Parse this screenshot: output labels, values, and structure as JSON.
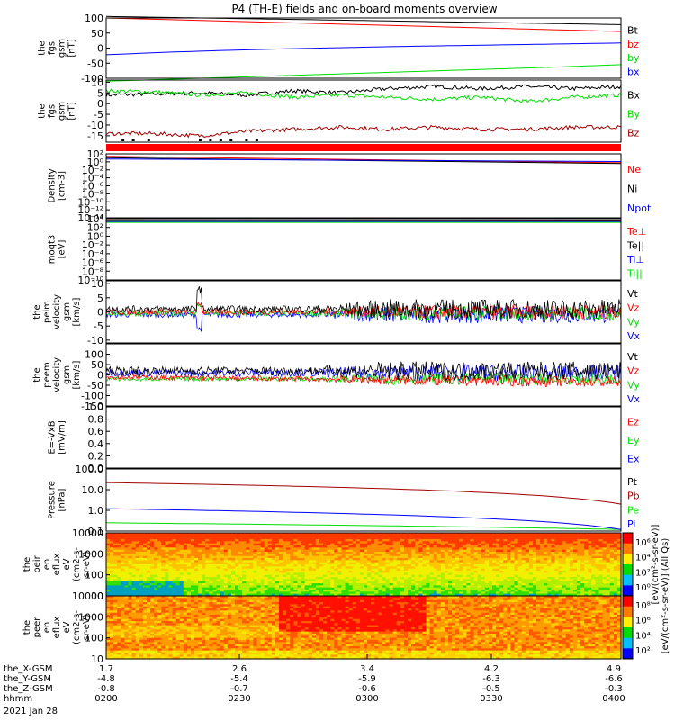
{
  "title": "P4 (TH-E) fields and on-board moments overview",
  "colors": {
    "black": "#000000",
    "red": "#ff0000",
    "green": "#00dd00",
    "blue": "#0000ff",
    "darkred": "#a00000",
    "darkgreen": "#00cc00"
  },
  "chart_data": [
    {
      "type": "line",
      "id": "p1",
      "ylabel": [
        "the",
        "fgs",
        "gsm",
        "[nT]"
      ],
      "yticks": [
        100,
        50,
        0,
        -50,
        -100
      ],
      "ylim": [
        -100,
        100
      ],
      "series": [
        {
          "name": "Bt",
          "color": "black",
          "values": [
            105,
            102,
            99,
            96,
            93,
            90,
            87,
            84,
            81,
            78
          ]
        },
        {
          "name": "bz",
          "color": "red",
          "values": [
            100,
            95,
            90,
            85,
            80,
            75,
            70,
            65,
            60,
            55
          ]
        },
        {
          "name": "by",
          "color": "green",
          "values": [
            -110,
            -104,
            -98,
            -92,
            -86,
            -80,
            -74,
            -68,
            -62,
            -55
          ]
        },
        {
          "name": "bx",
          "color": "blue",
          "values": [
            -22,
            -14,
            -8,
            -3,
            1,
            5,
            8,
            11,
            14,
            17
          ]
        }
      ]
    },
    {
      "type": "line",
      "id": "p2",
      "ylabel": [
        "the",
        "fgs",
        "gsm",
        "[nT]"
      ],
      "yticks": [
        10,
        5,
        0,
        -5,
        -10,
        -15
      ],
      "ylim": [
        -18,
        11
      ],
      "series": [
        {
          "name": "Bx",
          "color": "black",
          "values": [
            4,
            4.5,
            5,
            4,
            6,
            5,
            7,
            8,
            7,
            8,
            7,
            8
          ]
        },
        {
          "name": "By",
          "color": "green",
          "values": [
            6,
            5.5,
            4,
            5,
            3,
            4,
            3,
            2,
            3,
            1,
            3,
            4
          ]
        },
        {
          "name": "Bz",
          "color": "darkred",
          "values": [
            -14,
            -14,
            -15,
            -13,
            -12,
            -11,
            -12,
            -11,
            -12,
            -12,
            -11,
            -11
          ]
        }
      ]
    },
    {
      "type": "line",
      "id": "p3",
      "scale": "log",
      "ylabel": [
        "Density",
        "[cm-3]"
      ],
      "yticks": [
        "10²",
        "10⁰",
        "10⁻²",
        "10⁻⁴",
        "10⁻⁶",
        "10⁻⁸",
        "10⁻¹⁰",
        "10⁻¹²",
        "10⁻¹⁴"
      ],
      "series": [
        {
          "name": "Ne",
          "color": "red"
        },
        {
          "name": "Ni",
          "color": "black"
        },
        {
          "name": "Npot",
          "color": "blue"
        }
      ]
    },
    {
      "type": "line",
      "id": "p4",
      "scale": "log",
      "ylabel": [
        "moqt3",
        "[eV]"
      ],
      "yticks": [
        "10⁴",
        "10²",
        "10⁰",
        "10⁻²",
        "10⁻⁴",
        "10⁻⁶",
        "10⁻⁸",
        "10⁻¹⁰"
      ],
      "series": [
        {
          "name": "Te⊥",
          "color": "red"
        },
        {
          "name": "Te||",
          "color": "black"
        },
        {
          "name": "Ti⊥",
          "color": "blue"
        },
        {
          "name": "Ti||",
          "color": "green"
        }
      ]
    },
    {
      "type": "line",
      "id": "p5",
      "ylabel": [
        "the",
        "peim",
        "velocity",
        "gsm",
        "[km/s]"
      ],
      "yticks": [
        10,
        5,
        0,
        -5,
        -10
      ],
      "ylim": [
        -11,
        11
      ],
      "series": [
        {
          "name": "Vt",
          "color": "black"
        },
        {
          "name": "Vz",
          "color": "red"
        },
        {
          "name": "Vy",
          "color": "green"
        },
        {
          "name": "Vx",
          "color": "blue"
        }
      ]
    },
    {
      "type": "line",
      "id": "p6",
      "ylabel": [
        "the",
        "peem",
        "velocity",
        "gsm",
        "[km/s]"
      ],
      "yticks": [
        100,
        50,
        0,
        -50,
        -100,
        -150
      ],
      "ylim": [
        -150,
        150
      ],
      "series": [
        {
          "name": "Vt",
          "color": "black"
        },
        {
          "name": "Vz",
          "color": "red"
        },
        {
          "name": "Vy",
          "color": "green"
        },
        {
          "name": "Vx",
          "color": "blue"
        }
      ]
    },
    {
      "type": "line",
      "id": "p7",
      "ylabel": [
        "E=-VxB",
        "[mV/m]"
      ],
      "yticks": [
        "1.0",
        "0.8",
        "0.6",
        "0.4",
        "0.2",
        "0.0"
      ],
      "series": [
        {
          "name": "Ez",
          "color": "red"
        },
        {
          "name": "Ey",
          "color": "green"
        },
        {
          "name": "Ex",
          "color": "blue"
        }
      ]
    },
    {
      "type": "line",
      "id": "p8",
      "scale": "log",
      "ylabel": [
        "Pressure",
        "[nPa]"
      ],
      "yticks": [
        "100.0",
        "10.0",
        "1.0",
        "0.1"
      ],
      "series": [
        {
          "name": "Pt",
          "color": "black",
          "values": [
            22,
            2
          ]
        },
        {
          "name": "Pb",
          "color": "darkred",
          "values": [
            22,
            2
          ]
        },
        {
          "name": "Pe",
          "color": "green",
          "values": [
            0.25,
            0.12
          ]
        },
        {
          "name": "Pi",
          "color": "blue",
          "values": [
            1.2,
            0.12
          ]
        }
      ]
    },
    {
      "type": "heatmap",
      "id": "p9",
      "ylabel": [
        "the",
        "peir",
        "en",
        "eflux",
        "eV",
        "(cm2-s-",
        "sr-eV)"
      ],
      "yticks": [
        "10000",
        "1000",
        "100",
        "10"
      ]
    },
    {
      "type": "heatmap",
      "id": "p10",
      "ylabel": [
        "the",
        "peer",
        "en",
        "eflux",
        "eV",
        "(cm2-s-",
        "sr-eV)"
      ],
      "yticks": [
        "10000",
        "1000",
        "100",
        "10"
      ]
    }
  ],
  "colorbar": {
    "ticks": [
      "10⁶",
      "10⁴",
      "10²",
      "10⁰"
    ],
    "ticks2": [
      "10⁸",
      "10⁶",
      "10⁴",
      "10²"
    ],
    "label": "[eV/(cm²-s-sr-eV)] (All Qs)",
    "label2": "[eV/(cm²-s-sr-eV)]"
  },
  "xaxis": {
    "rows": [
      {
        "name": "the_X-GSM",
        "values": [
          "1.7",
          "2.6",
          "3.4",
          "4.2",
          "4.9"
        ]
      },
      {
        "name": "the_Y-GSM",
        "values": [
          "-4.8",
          "-5.4",
          "-5.9",
          "-6.3",
          "-6.6"
        ]
      },
      {
        "name": "the_Z-GSM",
        "values": [
          "-0.8",
          "-0.7",
          "-0.6",
          "-0.5",
          "-0.3"
        ]
      },
      {
        "name": "hhmm",
        "values": [
          "0200",
          "0230",
          "0300",
          "0330",
          "0400"
        ]
      }
    ],
    "date": "2021 Jan 28"
  }
}
